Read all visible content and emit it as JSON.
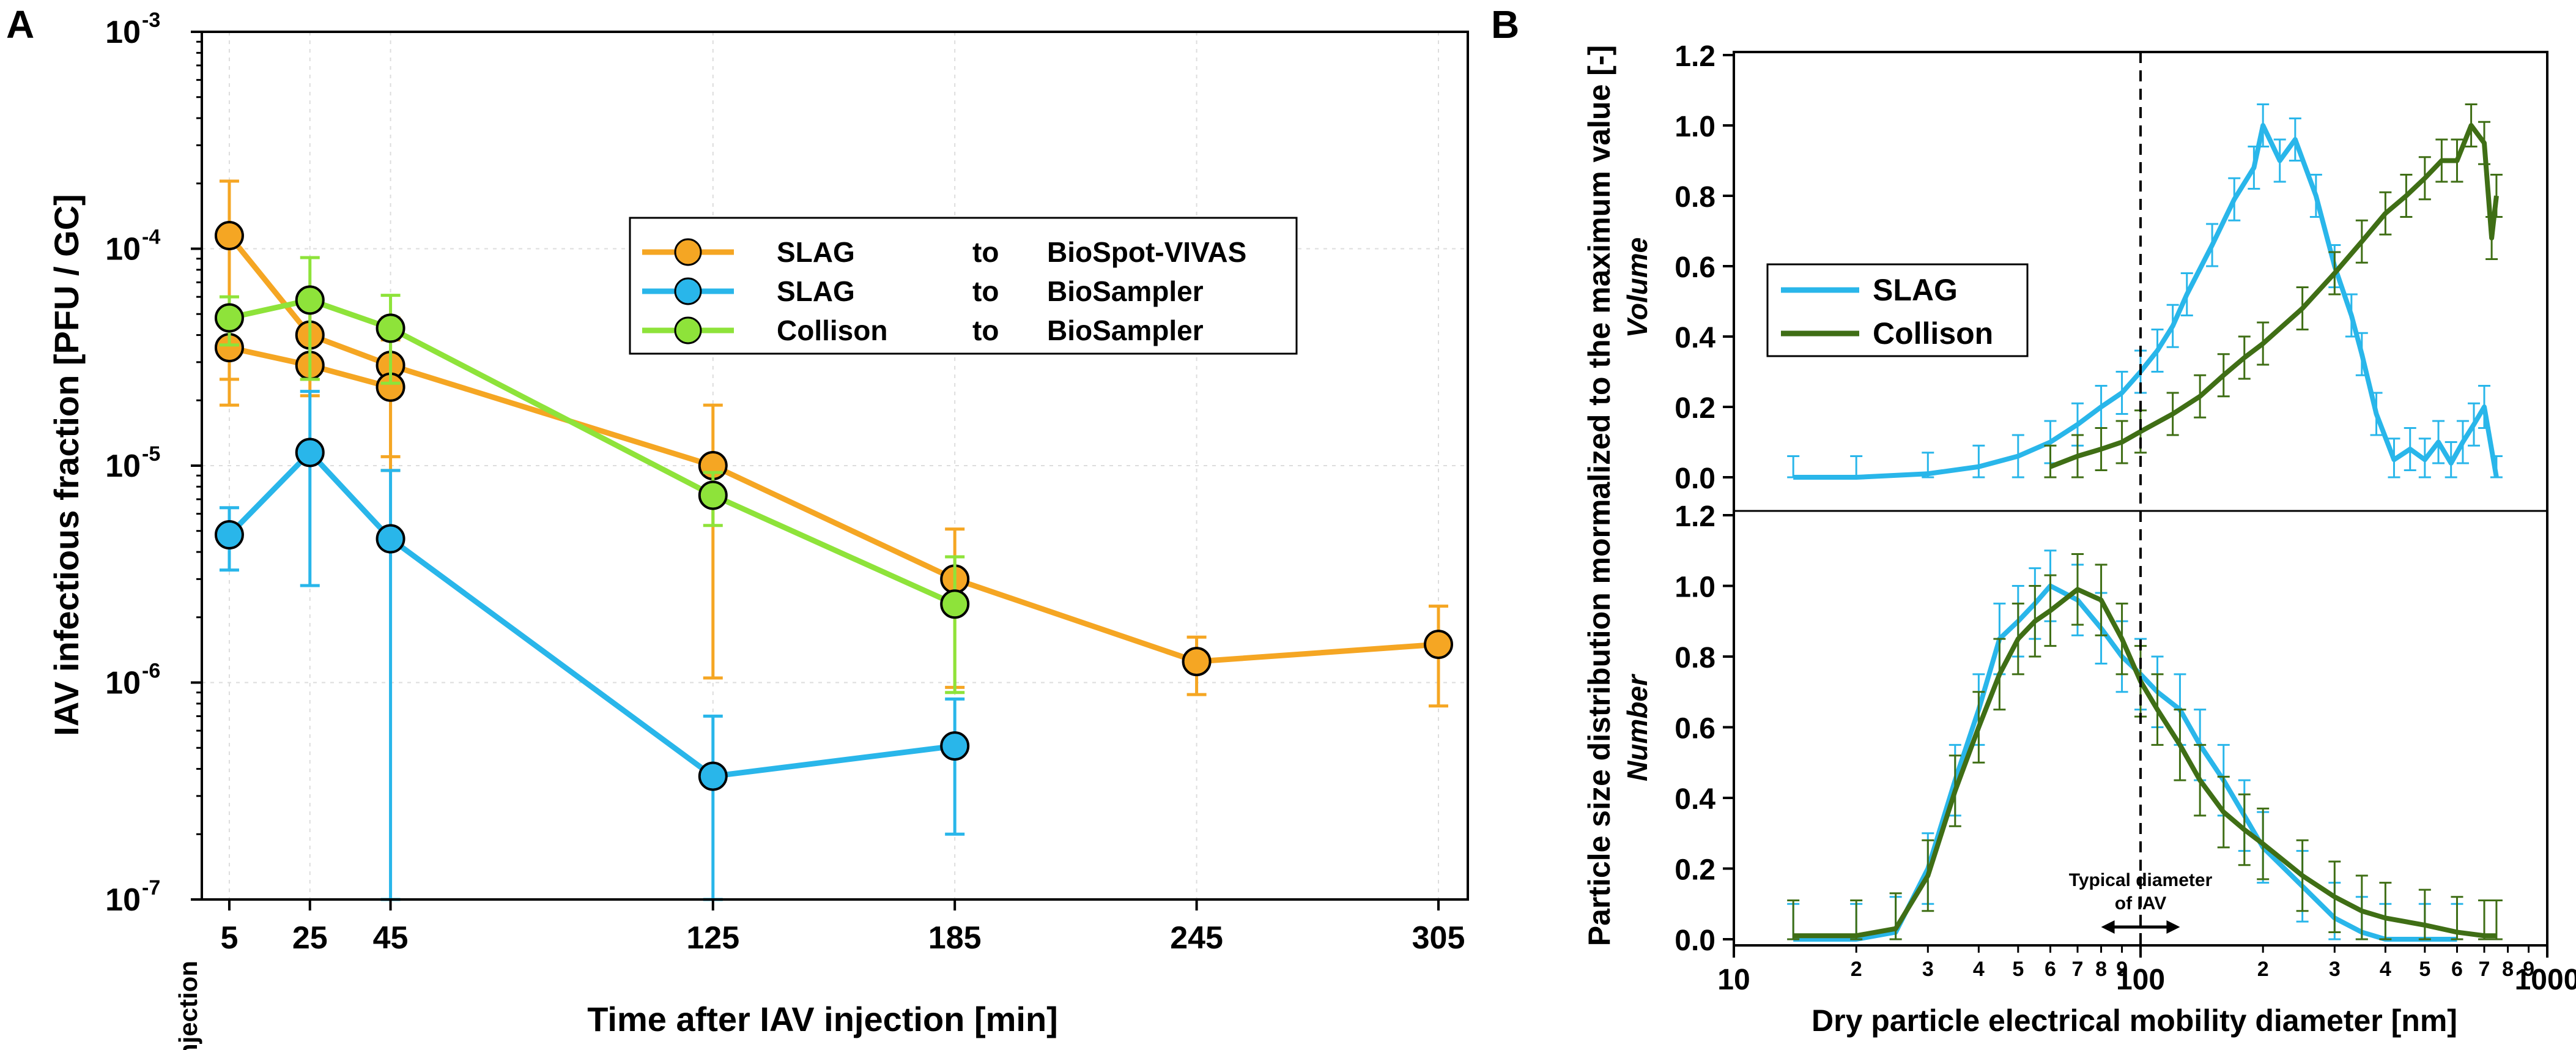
{
  "colors": {
    "orange": "#f5a623",
    "blue": "#29b6ea",
    "green": "#8ee33a",
    "dark_green": "#3f6e15",
    "grid": "#dddddd"
  },
  "chart_data": [
    {
      "panel": "A",
      "type": "line",
      "yscale": "log",
      "title": "",
      "xlabel": "Time after IAV injection [min]",
      "ylabel": "IAV infectious fraction [PFU / GC]",
      "xlim": [
        0,
        305
      ],
      "ylim": [
        1e-07,
        0.001
      ],
      "x_ticks": [
        5,
        25,
        45,
        125,
        185,
        245,
        305
      ],
      "x_tick_labels": [
        "5",
        "25",
        "45",
        "125",
        "185",
        "245",
        "305"
      ],
      "injection_label": "Injection",
      "y_tick_labels": [
        {
          "base": "10",
          "exp": "-7"
        },
        {
          "base": "10",
          "exp": "-6"
        },
        {
          "base": "10",
          "exp": "-5"
        },
        {
          "base": "10",
          "exp": "-4"
        },
        {
          "base": "10",
          "exp": "-3"
        }
      ],
      "legend": [
        {
          "source": "SLAG",
          "to": "to",
          "target": "BioSpot-VIVAS",
          "color": "#f5a623"
        },
        {
          "source": "SLAG",
          "to": "to",
          "target": "BioSampler",
          "color": "#29b6ea"
        },
        {
          "source": "Collison",
          "to": "to",
          "target": "BioSampler",
          "color": "#8ee33a"
        }
      ],
      "series": [
        {
          "name": "SLAG to BioSpot-VIVAS (run 1)",
          "color": "#f5a623",
          "points": [
            {
              "x": 5,
              "y": 0.000115,
              "lo": 2.5e-05,
              "hi": 0.000205
            },
            {
              "x": 25,
              "y": 4e-05,
              "lo": 2.5e-05,
              "hi": 5.5e-05
            },
            {
              "x": 45,
              "y": 2.9e-05,
              "lo": 1.1e-05,
              "hi": 4.8e-05
            },
            {
              "x": 125,
              "y": 1e-05,
              "lo": 1.05e-06,
              "hi": 1.9e-05
            },
            {
              "x": 185,
              "y": 3e-06,
              "lo": 9.5e-07,
              "hi": 5.1e-06
            },
            {
              "x": 245,
              "y": 1.25e-06,
              "lo": 8.8e-07,
              "hi": 1.62e-06
            },
            {
              "x": 305,
              "y": 1.5e-06,
              "lo": 7.8e-07,
              "hi": 2.25e-06
            }
          ]
        },
        {
          "name": "SLAG to BioSpot-VIVAS (run 2)",
          "color": "#f5a623",
          "points": [
            {
              "x": 5,
              "y": 3.5e-05,
              "lo": 1.9e-05,
              "hi": 5e-05
            },
            {
              "x": 25,
              "y": 2.9e-05,
              "lo": 2.1e-05,
              "hi": 3.8e-05
            },
            {
              "x": 45,
              "y": 2.3e-05,
              "lo": 9.5e-06,
              "hi": 3.8e-05
            }
          ]
        },
        {
          "name": "SLAG to BioSampler",
          "color": "#29b6ea",
          "points": [
            {
              "x": 5,
              "y": 4.8e-06,
              "lo": 3.3e-06,
              "hi": 6.4e-06
            },
            {
              "x": 25,
              "y": 1.15e-05,
              "lo": 2.8e-06,
              "hi": 2.2e-05
            },
            {
              "x": 45,
              "y": 4.6e-06,
              "lo": 1e-07,
              "hi": 9.5e-06
            },
            {
              "x": 125,
              "y": 3.7e-07,
              "lo": 1e-07,
              "hi": 7e-07
            },
            {
              "x": 185,
              "y": 5.1e-07,
              "lo": 2e-07,
              "hi": 8.4e-07
            }
          ]
        },
        {
          "name": "Collison to BioSampler",
          "color": "#8ee33a",
          "points": [
            {
              "x": 5,
              "y": 4.8e-05,
              "lo": 3.6e-05,
              "hi": 6e-05
            },
            {
              "x": 25,
              "y": 5.8e-05,
              "lo": 2.5e-05,
              "hi": 9.1e-05
            },
            {
              "x": 45,
              "y": 4.3e-05,
              "lo": 2.4e-05,
              "hi": 6.1e-05
            },
            {
              "x": 125,
              "y": 7.3e-06,
              "lo": 5.3e-06,
              "hi": 9.3e-06
            },
            {
              "x": 185,
              "y": 2.3e-06,
              "lo": 9e-07,
              "hi": 3.8e-06
            }
          ]
        }
      ]
    },
    {
      "panel": "B",
      "type": "line",
      "xscale": "log",
      "title": "",
      "xlabel": "Dry particle electrical mobility diameter [nm]",
      "ylabel": "Particle size distribution mormalized to the maximum value [-]",
      "xlim": [
        10,
        1000
      ],
      "x_major_ticks": [
        10,
        100,
        1000
      ],
      "x_major_labels": [
        "10",
        "100",
        "1000"
      ],
      "x_minor_ticks": [
        20,
        30,
        40,
        50,
        60,
        70,
        80,
        90,
        200,
        300,
        400,
        500,
        600,
        700,
        800,
        900
      ],
      "x_minor_labels": [
        "2",
        "3",
        "4",
        "5",
        "6",
        "7",
        "8",
        "9",
        "2",
        "3",
        "4",
        "5",
        "6",
        "7",
        "8",
        "9"
      ],
      "ylim": [
        0,
        1.2
      ],
      "y_ticks": [
        "0.0",
        "0.2",
        "0.4",
        "0.6",
        "0.8",
        "1.0",
        "1.2"
      ],
      "reference_line_x": 100,
      "annotation": {
        "line1": "Typical diameter",
        "line2": "of IAV",
        "range": [
          80,
          125
        ]
      },
      "legend": [
        {
          "label": "SLAG",
          "color": "#29b6ea"
        },
        {
          "label": "Collison",
          "color": "#3f6e15"
        }
      ],
      "subplots": [
        {
          "name": "Volume",
          "series": [
            {
              "name": "SLAG",
              "color": "#29b6ea",
              "x": [
                14,
                20,
                30,
                40,
                50,
                60,
                70,
                80,
                90,
                100,
                110,
                120,
                130,
                150,
                170,
                190,
                200,
                220,
                240,
                270,
                300,
                330,
                350,
                380,
                420,
                460,
                500,
                540,
                580,
                620,
                660,
                700,
                750
              ],
              "y": [
                0.0,
                0.0,
                0.01,
                0.03,
                0.06,
                0.1,
                0.15,
                0.2,
                0.24,
                0.3,
                0.36,
                0.43,
                0.52,
                0.66,
                0.79,
                0.88,
                1.0,
                0.9,
                0.96,
                0.8,
                0.6,
                0.46,
                0.35,
                0.18,
                0.05,
                0.08,
                0.05,
                0.1,
                0.04,
                0.1,
                0.15,
                0.2,
                0.0
              ],
              "err": 0.06
            },
            {
              "name": "Collison",
              "color": "#3f6e15",
              "x": [
                60,
                70,
                80,
                90,
                100,
                120,
                140,
                160,
                180,
                200,
                250,
                300,
                350,
                400,
                450,
                500,
                550,
                600,
                650,
                700,
                730,
                750
              ],
              "y": [
                0.03,
                0.06,
                0.08,
                0.1,
                0.13,
                0.18,
                0.23,
                0.29,
                0.34,
                0.38,
                0.48,
                0.58,
                0.67,
                0.75,
                0.8,
                0.85,
                0.9,
                0.9,
                1.0,
                0.95,
                0.68,
                0.8
              ],
              "err": 0.06
            }
          ]
        },
        {
          "name": "Number",
          "series": [
            {
              "name": "SLAG",
              "color": "#29b6ea",
              "x": [
                14,
                20,
                25,
                30,
                35,
                40,
                45,
                50,
                55,
                60,
                70,
                80,
                90,
                100,
                110,
                125,
                140,
                160,
                180,
                200,
                250,
                300,
                350,
                400,
                500,
                600
              ],
              "y": [
                0.0,
                0.0,
                0.02,
                0.2,
                0.45,
                0.65,
                0.85,
                0.9,
                0.95,
                1.0,
                0.96,
                0.88,
                0.8,
                0.75,
                0.7,
                0.65,
                0.55,
                0.45,
                0.35,
                0.26,
                0.15,
                0.06,
                0.02,
                0.0,
                0.0,
                0.0
              ],
              "err": 0.1
            },
            {
              "name": "Collison",
              "color": "#3f6e15",
              "x": [
                14,
                20,
                25,
                30,
                35,
                40,
                45,
                50,
                55,
                60,
                70,
                80,
                90,
                100,
                110,
                125,
                140,
                160,
                180,
                200,
                250,
                300,
                350,
                400,
                500,
                600,
                700,
                750
              ],
              "y": [
                0.01,
                0.01,
                0.03,
                0.18,
                0.42,
                0.6,
                0.75,
                0.85,
                0.9,
                0.93,
                0.99,
                0.96,
                0.85,
                0.73,
                0.65,
                0.55,
                0.45,
                0.36,
                0.31,
                0.27,
                0.18,
                0.12,
                0.08,
                0.06,
                0.04,
                0.02,
                0.01,
                0.01
              ],
              "err": 0.1
            }
          ]
        }
      ]
    }
  ]
}
